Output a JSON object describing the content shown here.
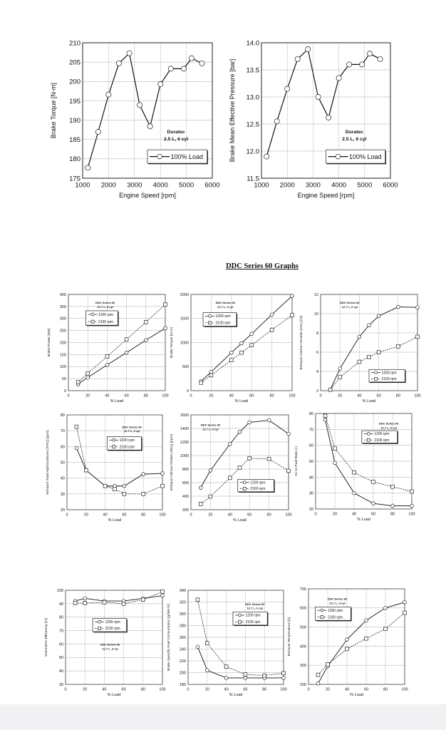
{
  "section_title": "DDC Series 60 Graphs",
  "chart_data": [
    {
      "type": "line",
      "ylabel": "Brake Torque [N-m]",
      "xlabel": "Engine Speed [rpm]",
      "xlim": [
        1000,
        6000
      ],
      "ylim": [
        175,
        210
      ],
      "xticks": [
        1000,
        2000,
        3000,
        4000,
        5000,
        6000
      ],
      "yticks": [
        175,
        180,
        185,
        190,
        195,
        200,
        205,
        210
      ],
      "grid": true,
      "annotation": [
        "Duratec",
        "2.5 L, 6 cyl"
      ],
      "legend": "bottom-right",
      "series": [
        {
          "name": "100% Load",
          "marker": "circle",
          "dashed": false,
          "x": [
            1200,
            1600,
            2000,
            2400,
            2800,
            3200,
            3600,
            4000,
            4400,
            4900,
            5200,
            5600
          ],
          "y": [
            177.7,
            187,
            196.6,
            204.7,
            207.3,
            193.9,
            188.4,
            199.3,
            203.3,
            203.3,
            206,
            204.7
          ]
        }
      ]
    },
    {
      "type": "line",
      "ylabel": "Brake Mean Effective Pressure [bar]",
      "xlabel": "Engine Speed [rpm]",
      "xlim": [
        1000,
        6000
      ],
      "ylim": [
        11.5,
        14.0
      ],
      "xticks": [
        1000,
        2000,
        3000,
        4000,
        5000,
        6000
      ],
      "yticks": [
        "11.5",
        "12.0",
        "12.5",
        "13.0",
        "13.5",
        "14.0"
      ],
      "grid": true,
      "annotation": [
        "Duratec",
        "2.5 L, 6 cyl"
      ],
      "legend": "bottom-right",
      "series": [
        {
          "name": "100% Load",
          "marker": "circle",
          "dashed": false,
          "x": [
            1200,
            1600,
            2000,
            2400,
            2800,
            3200,
            3600,
            4000,
            4400,
            4900,
            5200,
            5600
          ],
          "y": [
            11.9,
            12.55,
            13.15,
            13.7,
            13.88,
            13.0,
            12.62,
            13.35,
            13.6,
            13.6,
            13.8,
            13.7
          ]
        }
      ]
    },
    {
      "type": "line",
      "ylabel": "Brake Power [kW]",
      "xlabel": "% Load",
      "xlim": [
        0,
        100
      ],
      "ylim": [
        0,
        400
      ],
      "xticks": [
        0,
        20,
        40,
        60,
        80,
        100
      ],
      "yticks": [
        0,
        50,
        100,
        150,
        200,
        250,
        300,
        350,
        400
      ],
      "grid": true,
      "annotation": [
        "DDC Series 60",
        "12.7 L, 6 cyl"
      ],
      "legend": "top-left",
      "series": [
        {
          "name": "1200 rpm",
          "marker": "circle",
          "dashed": false,
          "x": [
            10,
            20,
            40,
            60,
            80,
            100
          ],
          "y": [
            27,
            55,
            107,
            158,
            210,
            260
          ]
        },
        {
          "name": "2100 rpm",
          "marker": "square",
          "dashed": true,
          "x": [
            10,
            20,
            40,
            60,
            80,
            100
          ],
          "y": [
            35,
            72,
            142,
            213,
            285,
            358
          ]
        }
      ]
    },
    {
      "type": "line",
      "ylabel": "Brake Torque [N-m]",
      "xlabel": "% Load",
      "xlim": [
        0,
        100
      ],
      "ylim": [
        0,
        2000
      ],
      "xticks": [
        0,
        20,
        40,
        60,
        80,
        100
      ],
      "yticks": [
        0,
        500,
        1000,
        1500,
        2000
      ],
      "grid": true,
      "annotation": [
        "DDC Series 60",
        "12.7 L, 6 cyl"
      ],
      "legend": "top-left",
      "series": [
        {
          "name": "1200 rpm",
          "marker": "circle",
          "dashed": false,
          "x": [
            10,
            20,
            40,
            50,
            60,
            80,
            100
          ],
          "y": [
            195,
            390,
            790,
            985,
            1180,
            1580,
            1970
          ]
        },
        {
          "name": "2100 rpm",
          "marker": "square",
          "dashed": true,
          "x": [
            10,
            20,
            40,
            50,
            60,
            80,
            100
          ],
          "y": [
            165,
            320,
            635,
            790,
            945,
            1265,
            1570
          ]
        }
      ]
    },
    {
      "type": "line",
      "ylabel": "Exhaust Carbon Dioxide (CO₂) [%]",
      "xlabel": "% Load",
      "xlim": [
        0,
        100
      ],
      "ylim": [
        2,
        12
      ],
      "xticks": [
        0,
        20,
        40,
        60,
        80,
        100
      ],
      "yticks": [
        2,
        4,
        6,
        8,
        10,
        12
      ],
      "grid": true,
      "annotation": [
        "DDC Series 60",
        "12.7 L, 6 cyl"
      ],
      "legend": "bottom-right",
      "series": [
        {
          "name": "1200 rpm",
          "marker": "circle",
          "dashed": false,
          "x": [
            10,
            20,
            40,
            50,
            60,
            80,
            100
          ],
          "y": [
            2.1,
            4.3,
            7.6,
            8.8,
            9.75,
            10.7,
            10.65
          ]
        },
        {
          "name": "2100 rpm",
          "marker": "square",
          "dashed": true,
          "x": [
            10,
            20,
            40,
            50,
            60,
            80,
            100
          ],
          "y": [
            2.1,
            3.4,
            5.0,
            5.5,
            6.0,
            6.6,
            7.6
          ]
        }
      ]
    },
    {
      "type": "line",
      "ylabel": "Exhaust Total Hydrocarbons (THC) [ppm]",
      "xlabel": "% Load",
      "xlim": [
        0,
        100
      ],
      "ylim": [
        20,
        80
      ],
      "xticks": [
        0,
        20,
        40,
        60,
        80,
        100
      ],
      "yticks": [
        20,
        30,
        40,
        50,
        60,
        70,
        80
      ],
      "grid": true,
      "annotation": [
        "DDC Series 60",
        "12.7 L, 6 cyl"
      ],
      "legend": "top-right",
      "series": [
        {
          "name": "1200 rpm",
          "marker": "circle",
          "dashed": false,
          "x": [
            10,
            20,
            40,
            50,
            60,
            80,
            100
          ],
          "y": [
            59,
            45,
            35,
            35,
            35,
            42.5,
            43
          ]
        },
        {
          "name": "2100 rpm",
          "marker": "square",
          "dashed": true,
          "x": [
            10,
            20,
            40,
            50,
            60,
            80,
            100
          ],
          "y": [
            72.5,
            45,
            35,
            33,
            30,
            30,
            35
          ]
        }
      ]
    },
    {
      "type": "line",
      "ylabel": "Exhaust Nitrous Oxides (NOₓ) [ppm]",
      "xlabel": "% Load",
      "xlim": [
        0,
        100
      ],
      "ylim": [
        200,
        1600
      ],
      "xticks": [
        0,
        20,
        40,
        60,
        80,
        100
      ],
      "yticks": [
        200,
        400,
        600,
        800,
        1000,
        1200,
        1400,
        1600
      ],
      "grid": true,
      "annotation": [
        "DDC Series 60",
        "12.7 L, 6 cyl"
      ],
      "legend": "bottom-right",
      "series": [
        {
          "name": "1200 rpm",
          "marker": "circle",
          "dashed": false,
          "x": [
            10,
            20,
            40,
            50,
            60,
            80,
            100
          ],
          "y": [
            525,
            780,
            1170,
            1350,
            1490,
            1520,
            1320
          ]
        },
        {
          "name": "2100 rpm",
          "marker": "square",
          "dashed": true,
          "x": [
            10,
            20,
            40,
            50,
            60,
            80,
            100
          ],
          "y": [
            285,
            395,
            670,
            820,
            960,
            950,
            775
          ]
        }
      ]
    },
    {
      "type": "line",
      "ylabel": "Air-to-Fuel Ratio [-]",
      "xlabel": "% Load",
      "xlim": [
        0,
        100
      ],
      "ylim": [
        20,
        80
      ],
      "xticks": [
        0,
        20,
        40,
        60,
        80,
        100
      ],
      "yticks": [
        20,
        30,
        40,
        50,
        60,
        70,
        80
      ],
      "grid": true,
      "annotation": [
        "DDC Series 60",
        "12.7 L, 6 cyl"
      ],
      "legend": "top-right",
      "series": [
        {
          "name": "1200 rpm",
          "marker": "circle",
          "dashed": false,
          "x": [
            10,
            20,
            40,
            60,
            80,
            100
          ],
          "y": [
            76,
            49,
            30,
            23.5,
            22,
            22
          ]
        },
        {
          "name": "2100 rpm",
          "marker": "square",
          "dashed": true,
          "x": [
            10,
            20,
            40,
            60,
            80,
            100
          ],
          "y": [
            78.5,
            58,
            43,
            37,
            34,
            31
          ]
        }
      ]
    },
    {
      "type": "line",
      "ylabel": "Volumetric Efficiency [%]",
      "xlabel": "% Load",
      "xlim": [
        0,
        100
      ],
      "ylim": [
        30,
        100
      ],
      "xticks": [
        0,
        20,
        40,
        60,
        80,
        100
      ],
      "yticks": [
        30,
        40,
        50,
        60,
        70,
        80,
        90,
        100
      ],
      "grid": true,
      "annotation": [
        "DDC Series 60",
        "12.7 L, 6 cyl"
      ],
      "legend": "center",
      "series": [
        {
          "name": "1200 rpm",
          "marker": "circle",
          "dashed": false,
          "x": [
            10,
            20,
            40,
            60,
            80,
            100
          ],
          "y": [
            92,
            94,
            92,
            92,
            94,
            96
          ]
        },
        {
          "name": "2100 rpm",
          "marker": "square",
          "dashed": true,
          "x": [
            10,
            20,
            40,
            60,
            80,
            100
          ],
          "y": [
            90.5,
            90.5,
            91,
            90,
            93,
            99
          ]
        }
      ]
    },
    {
      "type": "line",
      "ylabel": "Brake Specific Fuel Consumption [g/kW-hr]",
      "xlabel": "% Load",
      "xlim": [
        0,
        100
      ],
      "ylim": [
        180,
        340
      ],
      "xticks": [
        0,
        20,
        40,
        60,
        80,
        100
      ],
      "yticks": [
        180,
        200,
        220,
        240,
        260,
        280,
        300,
        320,
        340
      ],
      "grid": true,
      "annotation": [
        "DDC Series 60",
        "12.7 L, 6 cyl"
      ],
      "legend": "top-right",
      "series": [
        {
          "name": "1200 rpm",
          "marker": "circle",
          "dashed": false,
          "x": [
            10,
            20,
            40,
            60,
            80,
            100
          ],
          "y": [
            244,
            204,
            191,
            191,
            191,
            191
          ]
        },
        {
          "name": "2100 rpm",
          "marker": "square",
          "dashed": true,
          "x": [
            10,
            20,
            40,
            60,
            80,
            100
          ],
          "y": [
            324,
            250,
            210,
            197,
            195,
            199
          ]
        }
      ]
    },
    {
      "type": "line",
      "ylabel": "Exhaust Temperature [C]",
      "xlabel": "% Load",
      "xlim": [
        0,
        100
      ],
      "ylim": [
        200,
        700
      ],
      "xticks": [
        0,
        20,
        40,
        60,
        80,
        100
      ],
      "yticks": [
        200,
        300,
        400,
        500,
        600,
        700
      ],
      "grid": true,
      "annotation": [
        "DDC Series 60",
        "12.7 L, 6 cyl"
      ],
      "legend": "top-left",
      "series": [
        {
          "name": "1200 rpm",
          "marker": "circle",
          "dashed": false,
          "x": [
            10,
            20,
            40,
            60,
            80,
            100
          ],
          "y": [
            205,
            295,
            435,
            535,
            600,
            630
          ]
        },
        {
          "name": "2100 rpm",
          "marker": "square",
          "dashed": true,
          "x": [
            10,
            20,
            40,
            60,
            80,
            100
          ],
          "y": [
            250,
            305,
            385,
            440,
            490,
            575
          ]
        }
      ]
    }
  ]
}
